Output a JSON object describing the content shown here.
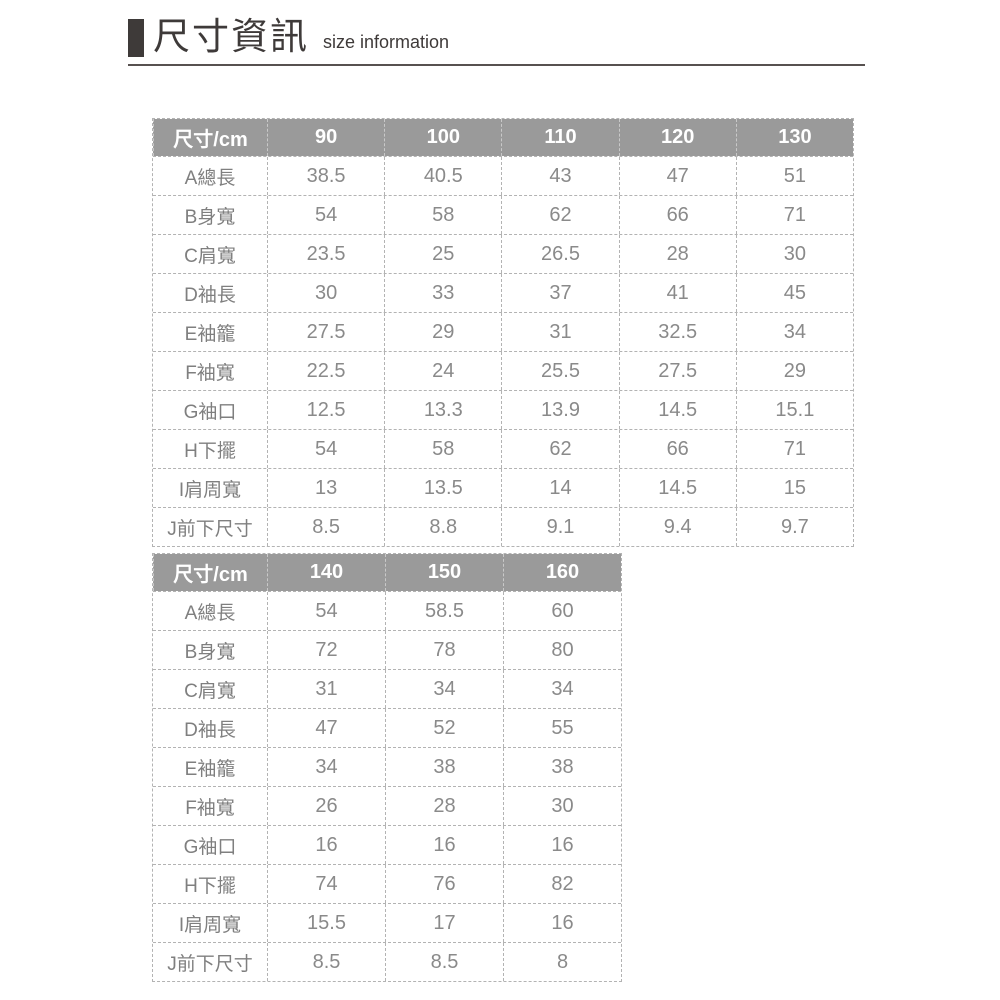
{
  "header": {
    "title_zh": "尺寸資訊",
    "title_en": "size information"
  },
  "tables": [
    {
      "name": "size-table-90-130",
      "header": [
        "尺寸/cm",
        "90",
        "100",
        "110",
        "120",
        "130"
      ],
      "rows": [
        {
          "label": "A總長",
          "values": [
            "38.5",
            "40.5",
            "43",
            "47",
            "51"
          ]
        },
        {
          "label": "B身寬",
          "values": [
            "54",
            "58",
            "62",
            "66",
            "71"
          ]
        },
        {
          "label": "C肩寬",
          "values": [
            "23.5",
            "25",
            "26.5",
            "28",
            "30"
          ]
        },
        {
          "label": "D袖長",
          "values": [
            "30",
            "33",
            "37",
            "41",
            "45"
          ]
        },
        {
          "label": "E袖籠",
          "values": [
            "27.5",
            "29",
            "31",
            "32.5",
            "34"
          ]
        },
        {
          "label": "F袖寬",
          "values": [
            "22.5",
            "24",
            "25.5",
            "27.5",
            "29"
          ]
        },
        {
          "label": "G袖口",
          "values": [
            "12.5",
            "13.3",
            "13.9",
            "14.5",
            "15.1"
          ]
        },
        {
          "label": "H下擺",
          "values": [
            "54",
            "58",
            "62",
            "66",
            "71"
          ]
        },
        {
          "label": "I肩周寬",
          "values": [
            "13",
            "13.5",
            "14",
            "14.5",
            "15"
          ]
        },
        {
          "label": "J前下尺寸",
          "values": [
            "8.5",
            "8.8",
            "9.1",
            "9.4",
            "9.7"
          ]
        }
      ]
    },
    {
      "name": "size-table-140-160",
      "header": [
        "尺寸/cm",
        "140",
        "150",
        "160"
      ],
      "rows": [
        {
          "label": "A總長",
          "values": [
            "54",
            "58.5",
            "60"
          ]
        },
        {
          "label": "B身寬",
          "values": [
            "72",
            "78",
            "80"
          ]
        },
        {
          "label": "C肩寬",
          "values": [
            "31",
            "34",
            "34"
          ]
        },
        {
          "label": "D袖長",
          "values": [
            "47",
            "52",
            "55"
          ]
        },
        {
          "label": "E袖籠",
          "values": [
            "34",
            "38",
            "38"
          ]
        },
        {
          "label": "F袖寬",
          "values": [
            "26",
            "28",
            "30"
          ]
        },
        {
          "label": "G袖口",
          "values": [
            "16",
            "16",
            "16"
          ]
        },
        {
          "label": "H下擺",
          "values": [
            "74",
            "76",
            "82"
          ]
        },
        {
          "label": "I肩周寬",
          "values": [
            "15.5",
            "17",
            "16"
          ]
        },
        {
          "label": "J前下尺寸",
          "values": [
            "8.5",
            "8.5",
            "8"
          ]
        }
      ]
    }
  ],
  "colors": {
    "table_header_bg": "#9a9a9a",
    "table_header_text": "#ffffff",
    "cell_text": "#8a8a8a",
    "row_label_text": "#7f7f7f",
    "dashed_border": "#b3b3b3",
    "title_text": "#3e3a39",
    "title_accent_block": "#3e3a39",
    "divider": "#575150",
    "page_bg": "#ffffff"
  }
}
